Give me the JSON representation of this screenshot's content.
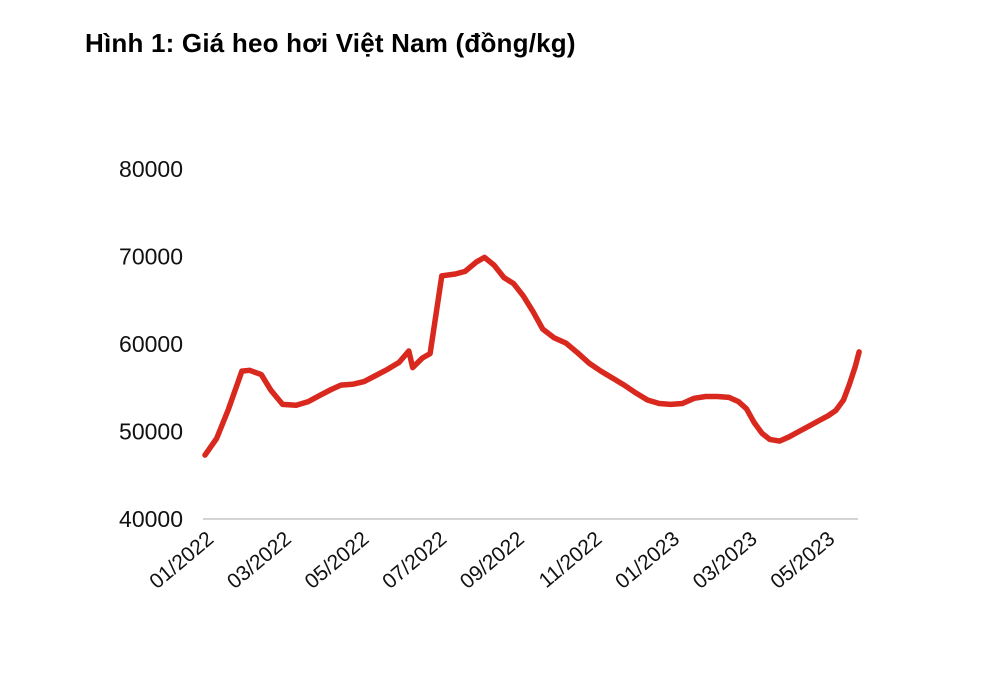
{
  "chart_data": {
    "type": "line",
    "title": "Hình 1: Giá heo hơi Việt Nam (đồng/kg)",
    "xlabel": "",
    "ylabel": "",
    "ylim": [
      40000,
      80000
    ],
    "xlim": [
      0,
      16.9
    ],
    "grid": false,
    "legend": "none",
    "line_color": "#d9291f",
    "axis_color": "#c6c6c6",
    "text_color": "#111111",
    "y_ticks": [
      40000,
      50000,
      60000,
      70000,
      80000
    ],
    "y_tick_labels": [
      "40000",
      "50000",
      "60000",
      "70000",
      "80000"
    ],
    "x_ticks": [
      {
        "month": 0,
        "label": "01/2022"
      },
      {
        "month": 2,
        "label": "03/2022"
      },
      {
        "month": 4,
        "label": "05/2022"
      },
      {
        "month": 6,
        "label": "07/2022"
      },
      {
        "month": 8,
        "label": "09/2022"
      },
      {
        "month": 10,
        "label": "11/2022"
      },
      {
        "month": 12,
        "label": "01/2023"
      },
      {
        "month": 14,
        "label": "03/2023"
      },
      {
        "month": 16,
        "label": "05/2023"
      }
    ],
    "series": [
      {
        "name": "Giá heo hơi Việt Nam (đồng/kg)",
        "points": [
          [
            0,
            47300
          ],
          [
            0.3,
            49200
          ],
          [
            0.6,
            52500
          ],
          [
            0.95,
            56900
          ],
          [
            1.15,
            57000
          ],
          [
            1.45,
            56500
          ],
          [
            1.7,
            54700
          ],
          [
            2.0,
            53100
          ],
          [
            2.35,
            53000
          ],
          [
            2.65,
            53400
          ],
          [
            2.95,
            54100
          ],
          [
            3.25,
            54800
          ],
          [
            3.5,
            55300
          ],
          [
            3.8,
            55400
          ],
          [
            4.1,
            55700
          ],
          [
            4.4,
            56400
          ],
          [
            4.7,
            57100
          ],
          [
            5.0,
            57900
          ],
          [
            5.25,
            59200
          ],
          [
            5.35,
            57300
          ],
          [
            5.6,
            58400
          ],
          [
            5.8,
            58900
          ],
          [
            6.1,
            67800
          ],
          [
            6.45,
            68000
          ],
          [
            6.7,
            68300
          ],
          [
            7.0,
            69400
          ],
          [
            7.2,
            69900
          ],
          [
            7.45,
            69000
          ],
          [
            7.7,
            67600
          ],
          [
            7.95,
            66900
          ],
          [
            8.2,
            65500
          ],
          [
            8.45,
            63700
          ],
          [
            8.7,
            61700
          ],
          [
            9.0,
            60700
          ],
          [
            9.3,
            60100
          ],
          [
            9.6,
            59000
          ],
          [
            9.9,
            57800
          ],
          [
            10.2,
            56900
          ],
          [
            10.5,
            56100
          ],
          [
            10.8,
            55300
          ],
          [
            11.1,
            54400
          ],
          [
            11.4,
            53600
          ],
          [
            11.7,
            53200
          ],
          [
            12.0,
            53100
          ],
          [
            12.3,
            53200
          ],
          [
            12.6,
            53800
          ],
          [
            12.9,
            54000
          ],
          [
            13.2,
            54000
          ],
          [
            13.5,
            53900
          ],
          [
            13.75,
            53400
          ],
          [
            13.95,
            52600
          ],
          [
            14.15,
            51000
          ],
          [
            14.35,
            49800
          ],
          [
            14.55,
            49100
          ],
          [
            14.8,
            48900
          ],
          [
            15.05,
            49400
          ],
          [
            15.3,
            50000
          ],
          [
            15.55,
            50600
          ],
          [
            15.8,
            51200
          ],
          [
            16.05,
            51800
          ],
          [
            16.25,
            52400
          ],
          [
            16.45,
            53600
          ],
          [
            16.6,
            55400
          ],
          [
            16.75,
            57400
          ],
          [
            16.85,
            59100
          ]
        ]
      }
    ]
  }
}
